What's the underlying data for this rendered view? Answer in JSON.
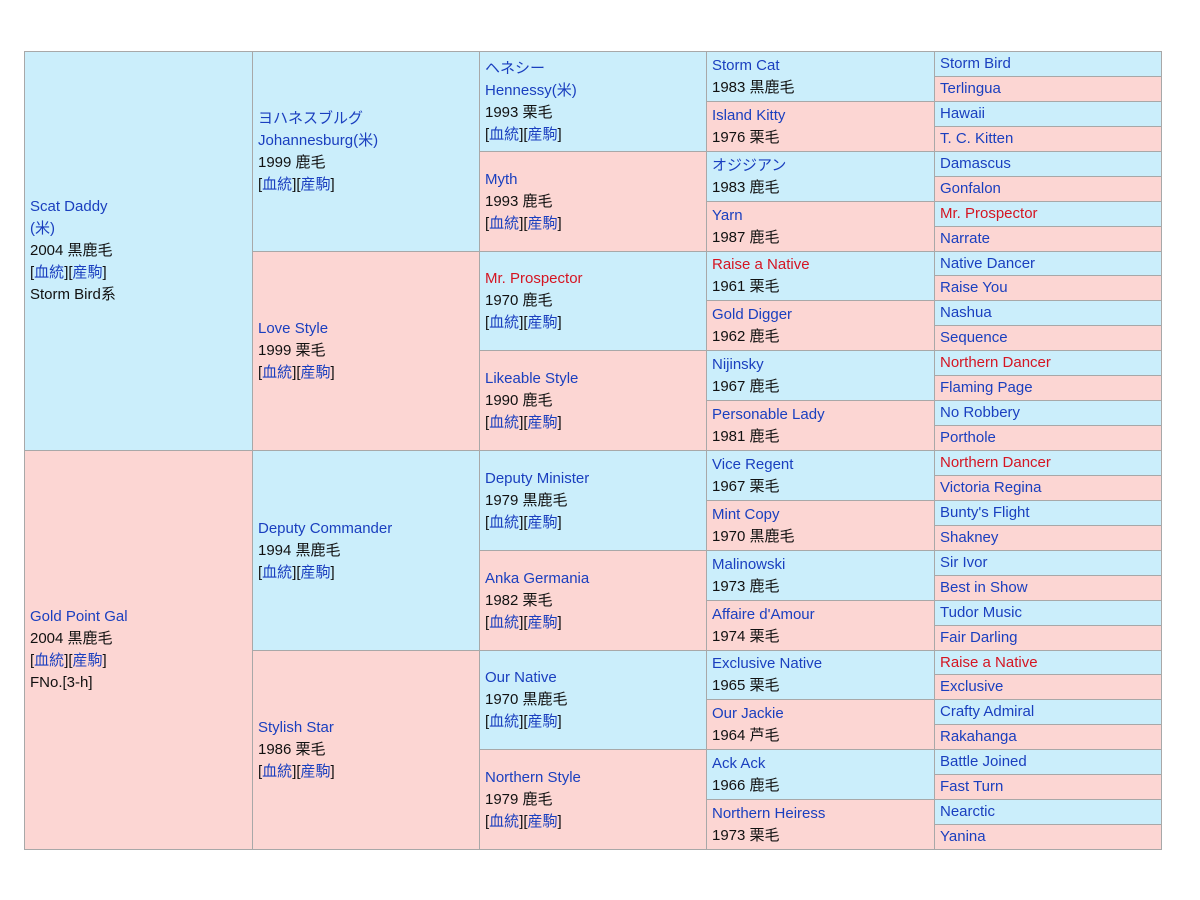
{
  "colors": {
    "male": "#cbeefb",
    "female": "#fcd6d3",
    "link": "#1a3fbf",
    "red_link": "#d51522"
  },
  "labels": {
    "pedigree": "血統",
    "progeny": "産駒"
  },
  "gen1": [
    {
      "name_lines": [
        "Scat Daddy",
        "(米)"
      ],
      "info": "2004 黒鹿毛",
      "links": true,
      "extra": "Storm Bird系",
      "color": "blue"
    },
    {
      "name_lines": [
        "Gold Point Gal"
      ],
      "info": "2004 黒鹿毛",
      "links": true,
      "extra": "FNo.[3-h]",
      "color": "blue"
    }
  ],
  "gen2": [
    {
      "name_lines": [
        "ヨハネスブルグ",
        "Johannesburg(米)"
      ],
      "info": "1999 鹿毛",
      "links": true,
      "color": "blue"
    },
    {
      "name_lines": [
        "Love Style"
      ],
      "info": "1999 栗毛",
      "links": true,
      "color": "blue"
    },
    {
      "name_lines": [
        "Deputy Commander"
      ],
      "info": "1994 黒鹿毛",
      "links": true,
      "color": "blue"
    },
    {
      "name_lines": [
        "Stylish Star"
      ],
      "info": "1986 栗毛",
      "links": true,
      "color": "blue"
    }
  ],
  "gen3": [
    {
      "name_lines": [
        "ヘネシー",
        "Hennessy(米)"
      ],
      "info": "1993 栗毛",
      "links": true,
      "color": "blue"
    },
    {
      "name_lines": [
        "Myth"
      ],
      "info": "1993 鹿毛",
      "links": true,
      "color": "blue"
    },
    {
      "name_lines": [
        "Mr. Prospector"
      ],
      "info": "1970 鹿毛",
      "links": true,
      "color": "red"
    },
    {
      "name_lines": [
        "Likeable Style"
      ],
      "info": "1990 鹿毛",
      "links": true,
      "color": "blue"
    },
    {
      "name_lines": [
        "Deputy Minister"
      ],
      "info": "1979 黒鹿毛",
      "links": true,
      "color": "blue"
    },
    {
      "name_lines": [
        "Anka Germania"
      ],
      "info": "1982 栗毛",
      "links": true,
      "color": "blue"
    },
    {
      "name_lines": [
        "Our Native"
      ],
      "info": "1970 黒鹿毛",
      "links": true,
      "color": "blue"
    },
    {
      "name_lines": [
        "Northern Style"
      ],
      "info": "1979 鹿毛",
      "links": true,
      "color": "blue"
    }
  ],
  "gen4": [
    {
      "name_lines": [
        "Storm Cat"
      ],
      "info": "1983 黒鹿毛",
      "color": "blue"
    },
    {
      "name_lines": [
        "Island Kitty"
      ],
      "info": "1976 栗毛",
      "color": "blue"
    },
    {
      "name_lines": [
        "オジジアン"
      ],
      "info": "1983 鹿毛",
      "color": "blue"
    },
    {
      "name_lines": [
        "Yarn"
      ],
      "info": "1987 鹿毛",
      "color": "blue"
    },
    {
      "name_lines": [
        "Raise a Native"
      ],
      "info": "1961 栗毛",
      "color": "red"
    },
    {
      "name_lines": [
        "Gold Digger"
      ],
      "info": "1962 鹿毛",
      "color": "blue"
    },
    {
      "name_lines": [
        "Nijinsky"
      ],
      "info": "1967 鹿毛",
      "color": "blue"
    },
    {
      "name_lines": [
        "Personable Lady"
      ],
      "info": "1981 鹿毛",
      "color": "blue"
    },
    {
      "name_lines": [
        "Vice Regent"
      ],
      "info": "1967 栗毛",
      "color": "blue"
    },
    {
      "name_lines": [
        "Mint Copy"
      ],
      "info": "1970 黒鹿毛",
      "color": "blue"
    },
    {
      "name_lines": [
        "Malinowski"
      ],
      "info": "1973 鹿毛",
      "color": "blue"
    },
    {
      "name_lines": [
        "Affaire d'Amour"
      ],
      "info": "1974 栗毛",
      "color": "blue"
    },
    {
      "name_lines": [
        "Exclusive Native"
      ],
      "info": "1965 栗毛",
      "color": "blue"
    },
    {
      "name_lines": [
        "Our Jackie"
      ],
      "info": "1964 芦毛",
      "color": "blue"
    },
    {
      "name_lines": [
        "Ack Ack"
      ],
      "info": "1966 鹿毛",
      "color": "blue"
    },
    {
      "name_lines": [
        "Northern Heiress"
      ],
      "info": "1973 栗毛",
      "color": "blue"
    }
  ],
  "gen5": [
    {
      "name": "Storm Bird",
      "color": "blue"
    },
    {
      "name": "Terlingua",
      "color": "blue"
    },
    {
      "name": "Hawaii",
      "color": "blue"
    },
    {
      "name": "T. C. Kitten",
      "color": "blue"
    },
    {
      "name": "Damascus",
      "color": "blue"
    },
    {
      "name": "Gonfalon",
      "color": "blue"
    },
    {
      "name": "Mr. Prospector",
      "color": "red"
    },
    {
      "name": "Narrate",
      "color": "blue"
    },
    {
      "name": "Native Dancer",
      "color": "blue"
    },
    {
      "name": "Raise You",
      "color": "blue"
    },
    {
      "name": "Nashua",
      "color": "blue"
    },
    {
      "name": "Sequence",
      "color": "blue"
    },
    {
      "name": "Northern Dancer",
      "color": "red"
    },
    {
      "name": "Flaming Page",
      "color": "blue"
    },
    {
      "name": "No Robbery",
      "color": "blue"
    },
    {
      "name": "Porthole",
      "color": "blue"
    },
    {
      "name": "Northern Dancer",
      "color": "red"
    },
    {
      "name": "Victoria Regina",
      "color": "blue"
    },
    {
      "name": "Bunty's Flight",
      "color": "blue"
    },
    {
      "name": "Shakney",
      "color": "blue"
    },
    {
      "name": "Sir Ivor",
      "color": "blue"
    },
    {
      "name": "Best in Show",
      "color": "blue"
    },
    {
      "name": "Tudor Music",
      "color": "blue"
    },
    {
      "name": "Fair Darling",
      "color": "blue"
    },
    {
      "name": "Raise a Native",
      "color": "red"
    },
    {
      "name": "Exclusive",
      "color": "blue"
    },
    {
      "name": "Crafty Admiral",
      "color": "blue"
    },
    {
      "name": "Rakahanga",
      "color": "blue"
    },
    {
      "name": "Battle Joined",
      "color": "blue"
    },
    {
      "name": "Fast Turn",
      "color": "blue"
    },
    {
      "name": "Nearctic",
      "color": "blue"
    },
    {
      "name": "Yanina",
      "color": "blue"
    }
  ]
}
